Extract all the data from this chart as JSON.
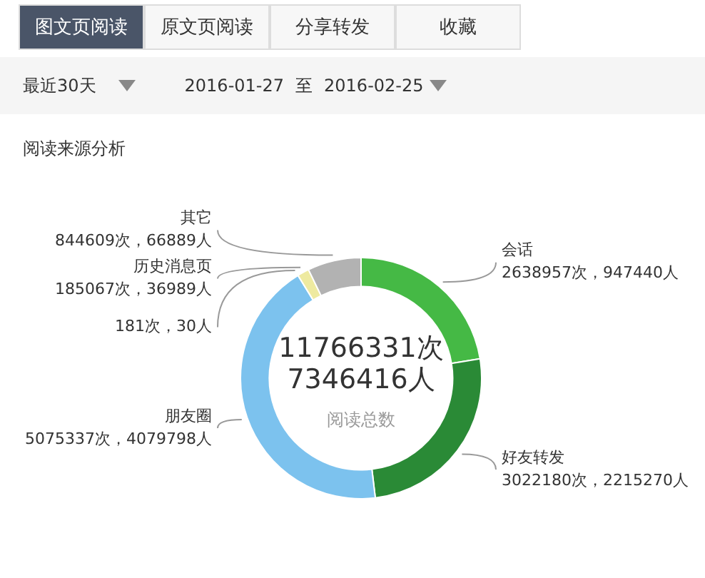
{
  "chart_data": {
    "type": "donut",
    "title": "阅读来源分析",
    "categories": [
      "会话",
      "好友转发",
      "朋友圈",
      null,
      "历史消息页",
      "其它"
    ],
    "values": [
      2638957,
      3022180,
      5075337,
      181,
      185067,
      844609
    ],
    "colors": [
      "#45b945",
      "#2a8a36",
      "#7cc2ee",
      "#e8c8a0",
      "#eeeaa0",
      "#b2b2b2"
    ],
    "value_labels": [
      "2638957次，947440人",
      "3022180次，2215270人",
      "5075337次，4079798人",
      "181次，30人",
      "185067次，36989人",
      "844609次，66889人"
    ],
    "legend": false,
    "annotations": [
      "图文页阅读",
      "原文页阅读",
      "分享转发",
      "收藏",
      "最近30天",
      "2016-01-27",
      "至",
      "2016-02-25",
      "11766331次",
      "7346416人",
      "阅读总数"
    ]
  }
}
